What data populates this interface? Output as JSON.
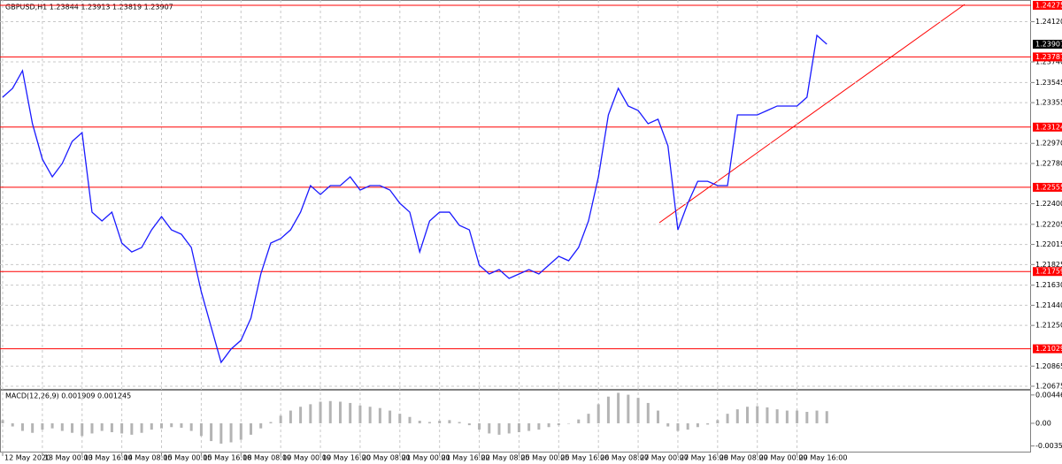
{
  "chart_data": [
    {
      "type": "line",
      "title": "GBPUSD,H1  1.23844 1.23913 1.23819 1.23907",
      "categories": [
        "12 May 2020",
        null,
        null,
        null,
        "13 May 00:00",
        null,
        null,
        null,
        "13 May 16:00",
        null,
        null,
        null,
        "14 May 08:00",
        null,
        null,
        null,
        "15 May 00:00",
        null,
        null,
        null,
        "15 May 16:00",
        null,
        null,
        null,
        "18 May 08:00",
        null,
        null,
        null,
        "19 May 00:00",
        null,
        null,
        null,
        "19 May 16:00",
        null,
        null,
        null,
        "20 May 08:00",
        null,
        null,
        null,
        "21 May 00:00",
        null,
        null,
        null,
        "21 May 16:00",
        null,
        null,
        null,
        "22 May 08:00",
        null,
        null,
        null,
        "25 May 00:00",
        null,
        null,
        null,
        "25 May 16:00",
        null,
        null,
        null,
        "26 May 08:00",
        null,
        null,
        null,
        "27 May 00:00",
        null,
        null,
        null,
        "27 May 16:00",
        null,
        null,
        null,
        "28 May 08:00",
        null,
        null,
        null,
        "29 May 00:00",
        null,
        null,
        null,
        "29 May 16:00",
        null,
        null,
        null
      ],
      "values": [
        1.23406,
        1.2349,
        1.23657,
        1.23156,
        1.22821,
        1.22654,
        1.2278,
        1.22989,
        1.23072,
        1.2232,
        1.22237,
        1.2232,
        1.22028,
        1.21944,
        1.21986,
        1.22153,
        1.22278,
        1.22153,
        1.22111,
        1.21986,
        1.21569,
        1.21234,
        1.209,
        1.21026,
        1.21109,
        1.21318,
        1.21736,
        1.22028,
        1.2207,
        1.22153,
        1.2232,
        1.22571,
        1.22487,
        1.22571,
        1.22571,
        1.22654,
        1.22529,
        1.22571,
        1.22571,
        1.22529,
        1.22404,
        1.2232,
        1.21944,
        1.22237,
        1.2232,
        1.2232,
        1.22195,
        1.22153,
        1.21819,
        1.21736,
        1.21777,
        1.21694,
        1.21736,
        1.21777,
        1.21736,
        1.21819,
        1.21903,
        1.21861,
        1.21986,
        1.22237,
        1.22654,
        1.23239,
        1.2349,
        1.23323,
        1.23281,
        1.23156,
        1.23198,
        1.22947,
        1.22153,
        1.22404,
        1.22612,
        1.22612,
        1.22571,
        1.22571,
        1.23239,
        1.23239,
        1.23239,
        1.23281,
        1.23323,
        1.23323,
        1.23323,
        1.23406,
        1.23991,
        1.23907
      ],
      "color": "#1a1aff",
      "ylim": [
        1.2065,
        1.24325
      ],
      "yticks": [
        {
          "value": 1.2412,
          "label": "1.24120"
        },
        {
          "value": 1.2374,
          "label": "1.23740"
        },
        1.23545,
        1.23355,
        {
          "value": 1.2297,
          "label": "1.22970"
        },
        {
          "value": 1.2278,
          "label": "1.22780"
        },
        {
          "value": 1.224,
          "label": "1.22400"
        },
        1.22205,
        1.22015,
        1.21825,
        {
          "value": 1.2163,
          "label": "1.21630"
        },
        {
          "value": 1.2144,
          "label": "1.21440"
        },
        {
          "value": 1.2125,
          "label": "1.21250"
        },
        1.20865,
        1.20675
      ],
      "levels": [
        1.24275,
        1.23787,
        1.23124,
        1.22555,
        1.21759,
        1.21029
      ],
      "level_color": "#ff0000",
      "current_price": 1.23907,
      "grid": true
    },
    {
      "type": "bar",
      "title": "MACD(12,26,9) 0.001909 0.001245",
      "values": [
        0.0005,
        -0.0005,
        -0.0012,
        -0.0015,
        -0.001,
        -0.0008,
        -0.0012,
        -0.0015,
        -0.002,
        -0.0016,
        -0.0012,
        -0.0014,
        -0.0016,
        -0.0018,
        -0.0015,
        -0.001,
        -0.0008,
        -0.0006,
        -0.0007,
        -0.0012,
        -0.002,
        -0.0028,
        -0.0032,
        -0.003,
        -0.0026,
        -0.0018,
        -0.0008,
        0.0002,
        0.0012,
        0.002,
        0.0026,
        0.003,
        0.0034,
        0.0035,
        0.0034,
        0.0032,
        0.0028,
        0.0026,
        0.0024,
        0.002,
        0.0015,
        0.001,
        0.0004,
        0.0002,
        0.0004,
        0.0005,
        0.0002,
        -0.0003,
        -0.001,
        -0.0016,
        -0.0018,
        -0.0016,
        -0.0014,
        -0.0012,
        -0.001,
        -0.0006,
        -0.0003,
        0,
        0.0006,
        0.0015,
        0.003,
        0.0042,
        0.0048,
        0.0045,
        0.004,
        0.0032,
        0.002,
        -0.0005,
        -0.0012,
        -0.001,
        -0.0006,
        -0.0002,
        0.0005,
        0.0015,
        0.0022,
        0.0026,
        0.0027,
        0.0025,
        0.0022,
        0.002,
        0.002,
        0.0018,
        0.002,
        0.001909
      ],
      "color": "#b4b4b4",
      "ylim": [
        -0.0046,
        0.005
      ],
      "yticks": [
        0.004462,
        {
          "value": 0,
          "label": "0.00"
        },
        -0.003571
      ]
    }
  ]
}
